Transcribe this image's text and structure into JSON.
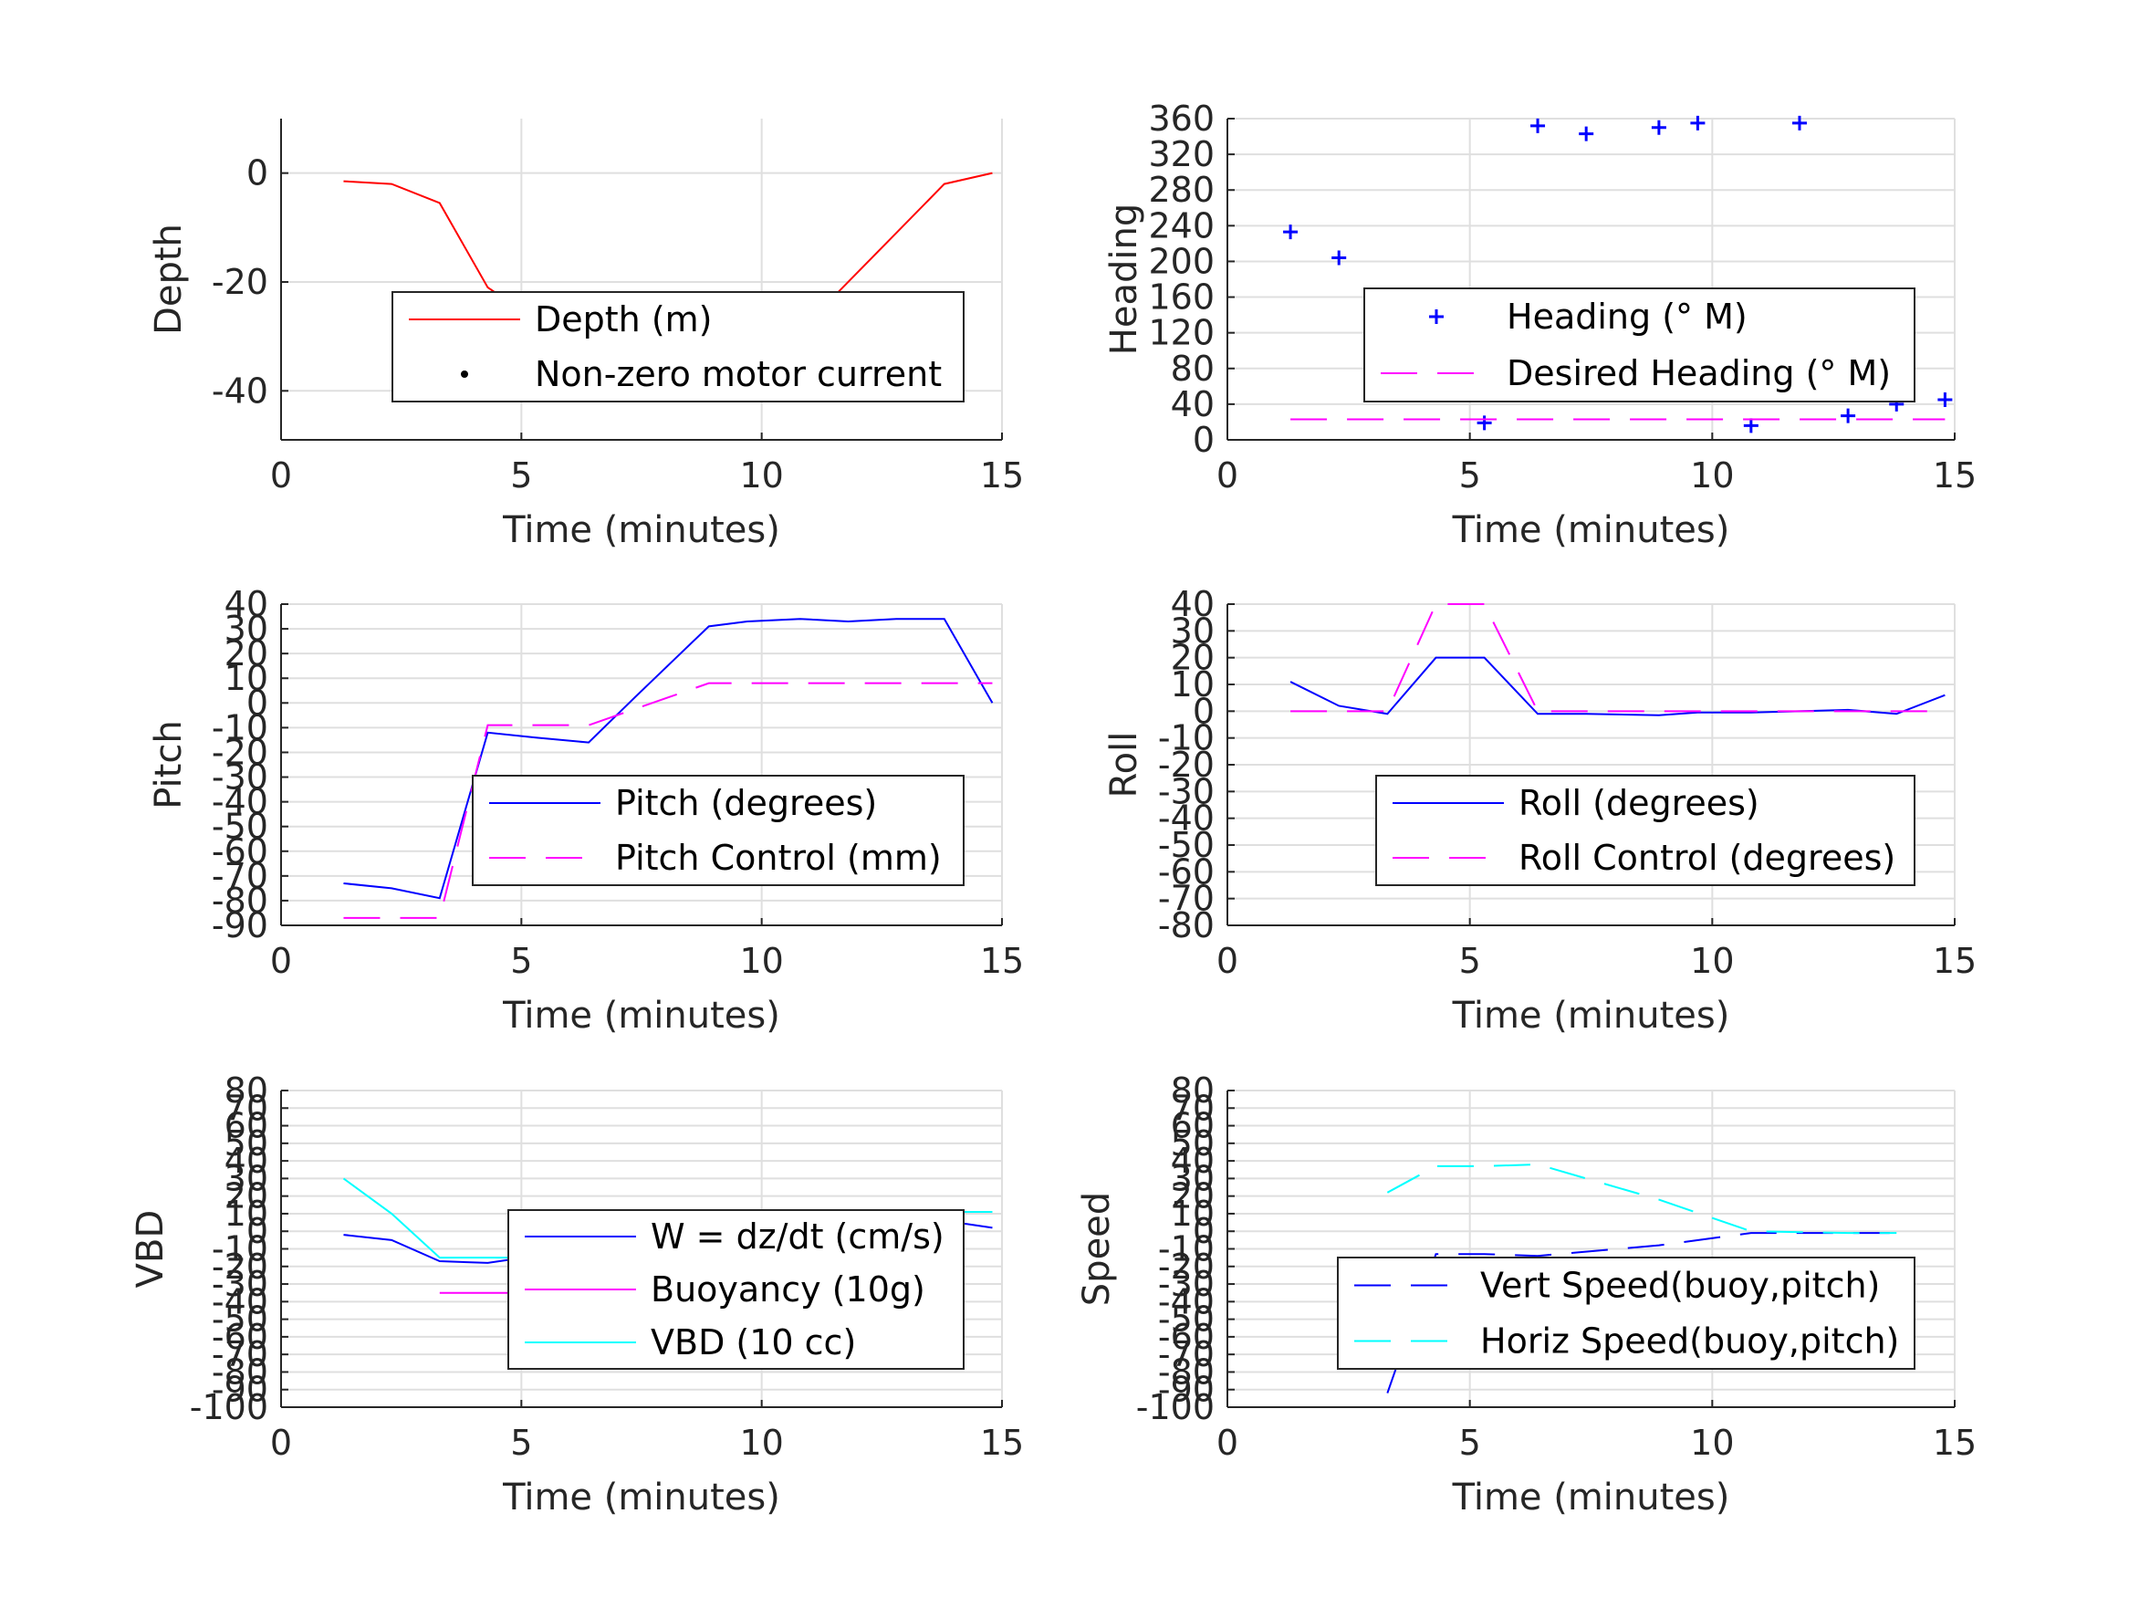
{
  "figure": {
    "background": "#ffffff"
  },
  "chart_data": [
    {
      "id": "depth",
      "type": "line",
      "xlabel": "Time (minutes)",
      "ylabel": "Depth",
      "xlim": [
        0,
        15
      ],
      "ylim": [
        -49,
        10
      ],
      "xticks": [
        0,
        5,
        10,
        15
      ],
      "yticks": [
        0,
        -20,
        -40
      ],
      "grid": true,
      "legend": {
        "placement": "center-right"
      },
      "series": [
        {
          "name": "Depth (m)",
          "color": "#ff0000",
          "style": "solid",
          "marker": "none",
          "x": [
            1.3,
            2.3,
            3.3,
            4.3,
            5.3,
            6.4,
            7.4,
            8.9,
            9.7,
            10.8,
            11.8,
            12.8,
            13.8,
            14.8
          ],
          "y": [
            -1.5,
            -2,
            -5.5,
            -21,
            -27,
            -34,
            -36,
            -38,
            -37,
            -29,
            -20,
            -11,
            -2,
            0
          ]
        },
        {
          "name": "Non-zero motor current",
          "color": "#000000",
          "style": "none",
          "marker": "dot",
          "x": [
            8.9,
            9.7
          ],
          "y": [
            -38,
            -37
          ]
        }
      ]
    },
    {
      "id": "heading",
      "type": "scatter",
      "xlabel": "Time (minutes)",
      "ylabel": "Heading",
      "xlim": [
        0,
        15
      ],
      "ylim": [
        0,
        360
      ],
      "xticks": [
        0,
        5,
        10,
        15
      ],
      "yticks": [
        0,
        40,
        80,
        120,
        160,
        200,
        240,
        280,
        320,
        360
      ],
      "grid": true,
      "legend": {
        "placement": "upper-right"
      },
      "series": [
        {
          "name": "Heading (° M)",
          "color": "#0000ff",
          "style": "none",
          "marker": "plus",
          "x": [
            1.3,
            2.3,
            3.3,
            4.3,
            4.3,
            5.3,
            6.4,
            7.4,
            8.9,
            9.7,
            10.8,
            11.8,
            12.8,
            13.8,
            14.8
          ],
          "y": [
            233,
            204,
            145,
            135,
            97,
            19,
            352,
            343,
            350,
            355,
            16,
            355,
            27,
            40,
            45
          ]
        },
        {
          "name": "Desired Heading (° M)",
          "color": "#ff00ff",
          "style": "dashed",
          "marker": "none",
          "x": [
            1.3,
            14.8
          ],
          "y": [
            23,
            23
          ]
        }
      ]
    },
    {
      "id": "pitch",
      "type": "line",
      "xlabel": "Time (minutes)",
      "ylabel": "Pitch",
      "xlim": [
        0,
        15
      ],
      "ylim": [
        -90,
        40
      ],
      "xticks": [
        0,
        5,
        10,
        15
      ],
      "yticks": [
        40,
        30,
        20,
        10,
        0,
        -10,
        -20,
        -30,
        -40,
        -50,
        -60,
        -70,
        -80,
        -90
      ],
      "grid": true,
      "legend": {
        "placement": "lower-right"
      },
      "series": [
        {
          "name": "Pitch (degrees)",
          "color": "#0000ff",
          "style": "solid",
          "marker": "none",
          "x": [
            1.3,
            2.3,
            3.3,
            4.3,
            5.3,
            6.4,
            7.4,
            8.9,
            9.7,
            10.8,
            11.8,
            12.8,
            13.8,
            14.8
          ],
          "y": [
            -73,
            -75,
            -79,
            -12,
            -14,
            -16,
            3,
            31,
            33,
            34,
            33,
            34,
            34,
            0
          ]
        },
        {
          "name": "Pitch Control (mm)",
          "color": "#ff00ff",
          "style": "dashed",
          "marker": "none",
          "x": [
            1.3,
            3.3,
            4.3,
            6.4,
            8.9,
            14.8
          ],
          "y": [
            -87,
            -87,
            -9,
            -9,
            8,
            8
          ]
        }
      ]
    },
    {
      "id": "roll",
      "type": "line",
      "xlabel": "Time (minutes)",
      "ylabel": "Roll",
      "xlim": [
        0,
        15
      ],
      "ylim": [
        -80,
        40
      ],
      "xticks": [
        0,
        5,
        10,
        15
      ],
      "yticks": [
        40,
        30,
        20,
        10,
        0,
        -10,
        -20,
        -30,
        -40,
        -50,
        -60,
        -70,
        -80
      ],
      "grid": true,
      "legend": {
        "placement": "lower-right"
      },
      "series": [
        {
          "name": "Roll (degrees)",
          "color": "#0000ff",
          "style": "solid",
          "marker": "none",
          "x": [
            1.3,
            2.3,
            3.3,
            4.3,
            5.3,
            6.4,
            7.4,
            8.9,
            9.7,
            10.8,
            11.8,
            12.8,
            13.8,
            14.8
          ],
          "y": [
            11,
            2,
            -1,
            20,
            20,
            -1,
            -1,
            -1.5,
            -0.5,
            -0.5,
            0,
            0.5,
            -1,
            6
          ]
        },
        {
          "name": "Roll Control (degrees)",
          "color": "#ff00ff",
          "style": "dashed",
          "marker": "none",
          "x": [
            1.3,
            3.3,
            4.3,
            5.3,
            6.4,
            14.8
          ],
          "y": [
            0,
            0,
            40,
            40,
            0,
            0
          ]
        }
      ]
    },
    {
      "id": "vbd",
      "type": "line",
      "xlabel": "Time (minutes)",
      "ylabel": "VBD",
      "xlim": [
        0,
        15
      ],
      "ylim": [
        -100,
        80
      ],
      "xticks": [
        0,
        5,
        10,
        15
      ],
      "yticks": [
        80,
        70,
        60,
        50,
        40,
        30,
        20,
        10,
        0,
        -10,
        -20,
        -30,
        -40,
        -50,
        -60,
        -70,
        -80,
        -90,
        -100
      ],
      "grid": true,
      "legend": {
        "placement": "center-right"
      },
      "series": [
        {
          "name": "W = dz/dt (cm/s)",
          "color": "#0000ff",
          "style": "solid",
          "marker": "none",
          "x": [
            1.3,
            2.3,
            3.3,
            4.3,
            5.3,
            6.4,
            7.4,
            8.9,
            9.7,
            10.8,
            11.8,
            12.8,
            13.8,
            14.8
          ],
          "y": [
            -2,
            -5,
            -17,
            -18,
            -14,
            -11,
            -6,
            -3,
            6,
            10,
            10,
            10,
            6,
            2
          ]
        },
        {
          "name": "Buoyancy (10g)",
          "color": "#ff00ff",
          "style": "solid",
          "marker": "none",
          "x": [
            3.3,
            6.4,
            8.9,
            11.0,
            13.9
          ],
          "y": [
            -35,
            -35,
            -20,
            -6,
            -3
          ]
        },
        {
          "name": "VBD (10 cc)",
          "color": "#00ffff",
          "style": "solid",
          "marker": "none",
          "x": [
            1.3,
            2.3,
            3.3,
            4.3,
            5.3,
            6.4,
            7.4,
            8.9,
            9.7,
            10.8,
            11.8,
            12.8,
            13.8,
            14.8
          ],
          "y": [
            30,
            10,
            -15,
            -15,
            -15,
            -15,
            -5,
            2,
            11,
            11,
            11,
            11,
            11,
            11
          ]
        }
      ]
    },
    {
      "id": "speed",
      "type": "line",
      "xlabel": "Time (minutes)",
      "ylabel": "Speed",
      "xlim": [
        0,
        15
      ],
      "ylim": [
        -100,
        80
      ],
      "xticks": [
        0,
        5,
        10,
        15
      ],
      "yticks": [
        80,
        70,
        60,
        50,
        40,
        30,
        20,
        10,
        0,
        -10,
        -20,
        -30,
        -40,
        -50,
        -60,
        -70,
        -80,
        -90,
        -100
      ],
      "grid": true,
      "legend": {
        "placement": "lower-right"
      },
      "series": [
        {
          "name": "Vert Speed(buoy,pitch)",
          "color": "#0000ff",
          "style": "dashed",
          "marker": "none",
          "x": [
            3.3,
            4.3,
            5.3,
            6.4,
            8.9,
            10.8,
            12.8,
            13.8
          ],
          "y": [
            -92,
            -13,
            -13,
            -14,
            -8,
            -1,
            -1,
            -1
          ]
        },
        {
          "name": "Horiz Speed(buoy,pitch)",
          "color": "#00ffff",
          "style": "dashed",
          "marker": "none",
          "x": [
            3.3,
            4.3,
            5.3,
            6.4,
            8.9,
            10.8,
            12.8,
            13.8
          ],
          "y": [
            22,
            37,
            37,
            38,
            18,
            0,
            -1,
            -1
          ]
        }
      ]
    }
  ]
}
